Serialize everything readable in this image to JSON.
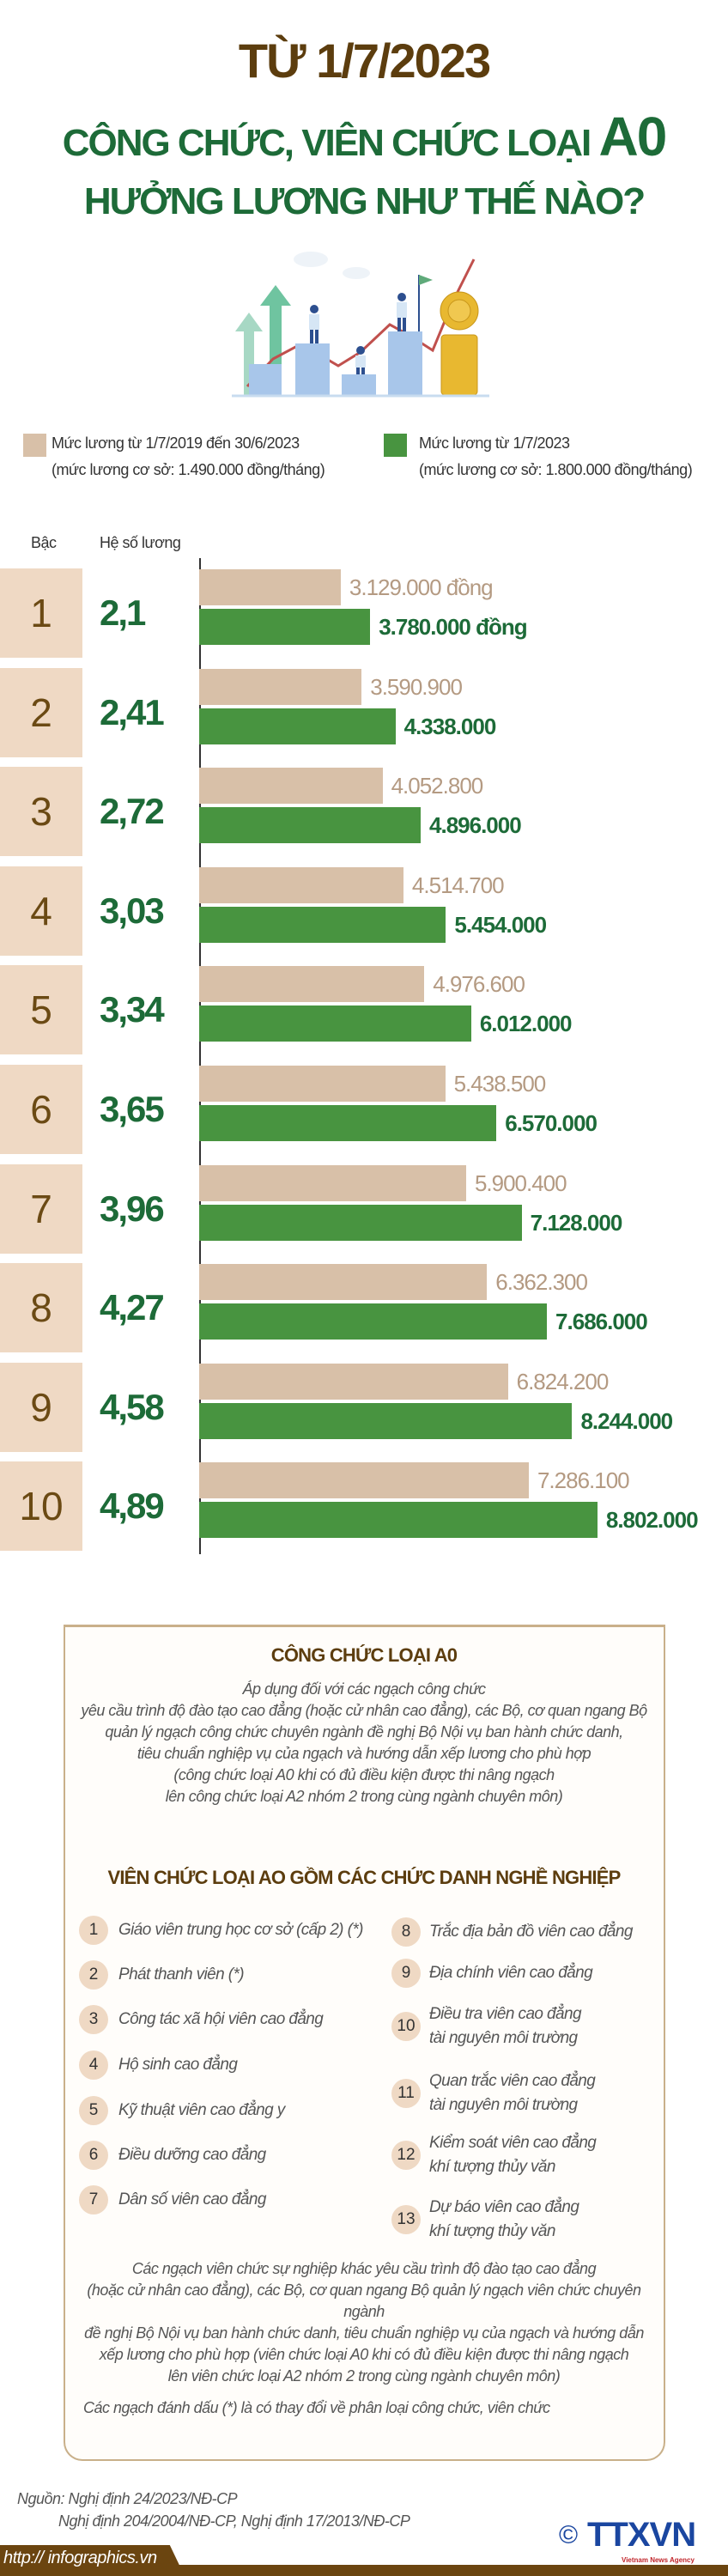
{
  "header": {
    "line1": "TỪ 1/7/2023",
    "line2": "CÔNG CHỨC, VIÊN CHỨC LOẠI",
    "line2_big": "A0",
    "line3": "HƯỞNG LƯƠNG NHƯ THẾ NÀO?"
  },
  "legend": {
    "old": {
      "title": "Mức lương từ 1/7/2019 đến 30/6/2023",
      "sub": "(mức lương cơ sở: 1.490.000 đồng/tháng)",
      "color": "#d8c0a8"
    },
    "new": {
      "title": "Mức lương từ 1/7/2023",
      "sub": "(mức lương cơ sở: 1.800.000 đồng/tháng)",
      "color": "#489440"
    }
  },
  "chart_data": {
    "type": "bar",
    "columns": {
      "grade": "Bậc",
      "coefficient": "Hệ số lương"
    },
    "categories": [
      "1",
      "2",
      "3",
      "4",
      "5",
      "6",
      "7",
      "8",
      "9",
      "10"
    ],
    "coefficients": [
      "2,1",
      "2,41",
      "2,72",
      "3,03",
      "3,34",
      "3,65",
      "3,96",
      "4,27",
      "4,58",
      "4,89"
    ],
    "series": [
      {
        "name": "Mức lương từ 1/7/2019 đến 30/6/2023",
        "values": [
          3129000,
          3590900,
          4052800,
          4514700,
          4976600,
          5438500,
          5900400,
          6362300,
          6824200,
          7286100
        ],
        "labels": [
          "3.129.000 đồng",
          "3.590.900",
          "4.052.800",
          "4.514.700",
          "4.976.600",
          "5.438.500",
          "5.900.400",
          "6.362.300",
          "6.824.200",
          "7.286.100"
        ]
      },
      {
        "name": "Mức lương từ 1/7/2023",
        "values": [
          3780000,
          4338000,
          4896000,
          5454000,
          6012000,
          6570000,
          7128000,
          7686000,
          8244000,
          8802000
        ],
        "labels": [
          "3.780.000 đồng",
          "4.338.000",
          "4.896.000",
          "5.454.000",
          "6.012.000",
          "6.570.000",
          "7.128.000",
          "7.686.000",
          "8.244.000",
          "8.802.000"
        ]
      }
    ],
    "unit": "đồng"
  },
  "cong_chuc": {
    "title": "CÔNG CHỨC LOẠI A0",
    "lines": [
      "Áp dụng đối với các ngạch công chức",
      "yêu cầu trình độ đào tạo cao đẳng (hoặc cử nhân cao đẳng), các Bộ, cơ quan ngang Bộ",
      "quản lý ngạch công chức chuyên ngành đề nghị Bộ Nội vụ ban hành chức danh,",
      "tiêu chuẩn nghiệp vụ của ngạch và hướng dẫn xếp lương cho phù hợp",
      "(công chức loại A0 khi có đủ điều kiện được thi nâng ngạch",
      "lên công chức loại A2 nhóm 2 trong cùng ngành chuyên môn)"
    ]
  },
  "vien_chuc": {
    "title": "VIÊN CHỨC LOẠI AO GỒM CÁC CHỨC DANH NGHỀ NGHIỆP",
    "items": [
      {
        "n": "1",
        "l1": "Giáo viên trung học cơ sở (cấp 2) (*)",
        "l2": ""
      },
      {
        "n": "2",
        "l1": "Phát thanh viên (*)",
        "l2": ""
      },
      {
        "n": "3",
        "l1": "Công tác xã hội viên cao đẳng",
        "l2": ""
      },
      {
        "n": "4",
        "l1": "Hộ sinh cao đẳng",
        "l2": ""
      },
      {
        "n": "5",
        "l1": "Kỹ thuật viên cao đẳng y",
        "l2": ""
      },
      {
        "n": "6",
        "l1": "Điều dưỡng cao đẳng",
        "l2": ""
      },
      {
        "n": "7",
        "l1": "Dân số viên cao đẳng",
        "l2": ""
      },
      {
        "n": "8",
        "l1": "Trắc địa bản đồ viên cao đẳng",
        "l2": ""
      },
      {
        "n": "9",
        "l1": "Địa chính viên cao đẳng",
        "l2": ""
      },
      {
        "n": "10",
        "l1": "Điều tra viên cao đẳng",
        "l2": "tài nguyên môi trường"
      },
      {
        "n": "11",
        "l1": "Quan trắc viên cao đẳng",
        "l2": "tài nguyên môi trường"
      },
      {
        "n": "12",
        "l1": "Kiểm soát viên cao đẳng",
        "l2": "khí tượng thủy văn"
      },
      {
        "n": "13",
        "l1": "Dự báo viên cao đẳng",
        "l2": "khí tượng thủy văn"
      }
    ],
    "lines": [
      "Các ngạch viên chức sự nghiệp khác yêu cầu trình độ đào tạo cao đẳng",
      "(hoặc cử nhân cao đẳng), các Bộ, cơ quan ngang Bộ quản lý ngạch viên chức chuyên ngành",
      "đề nghị Bộ Nội vụ ban hành chức danh, tiêu chuẩn nghiệp vụ của ngạch và hướng dẫn",
      "xếp lương cho phù hợp (viên chức loại A0 khi có đủ điều kiện được thi nâng ngạch",
      "lên viên chức loại A2 nhóm 2 trong cùng ngành chuyên môn)"
    ],
    "footnote": "Các ngạch đánh dấu (*) là có thay đổi về phân loại công chức, viên chức"
  },
  "source": {
    "line1": "Nguồn: Nghị định 24/2023/NĐ-CP",
    "line2": "Nghị định 204/2004/NĐ-CP, Nghị định 17/2013/NĐ-CP"
  },
  "footer": {
    "url": "http:// infographics.vn",
    "copyright": "©",
    "logo": "TTXVN",
    "logo_sub": "Vietnam News Agency"
  }
}
